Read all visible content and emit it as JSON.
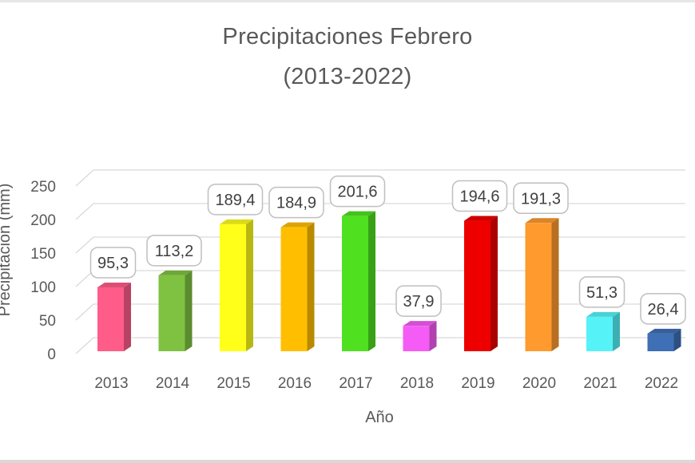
{
  "chart_data": {
    "type": "bar",
    "title_line1": "Precipitaciones Febrero",
    "title_line2": "(2013-2022)",
    "xlabel": "Año",
    "ylabel": "Precipitación (mm)",
    "ylim": [
      0,
      250
    ],
    "yticks": [
      "0",
      "50",
      "100",
      "150",
      "200",
      "250"
    ],
    "grid": true,
    "legend": "none",
    "categories": [
      "2013",
      "2014",
      "2015",
      "2016",
      "2017",
      "2018",
      "2019",
      "2020",
      "2021",
      "2022"
    ],
    "values": [
      95.3,
      113.2,
      189.4,
      184.9,
      201.6,
      37.9,
      194.6,
      191.3,
      51.3,
      26.4
    ],
    "data_labels": [
      "95,3",
      "113,2",
      "189,4",
      "184,9",
      "201,6",
      "37,9",
      "194,6",
      "191,3",
      "51,3",
      "26,4"
    ],
    "colors": [
      "#ff5c8a",
      "#7fc241",
      "#ffff1a",
      "#ffbf00",
      "#4fe01f",
      "#f55cf5",
      "#ee0000",
      "#ff9a2e",
      "#55f3f8",
      "#3f6fb5"
    ]
  }
}
